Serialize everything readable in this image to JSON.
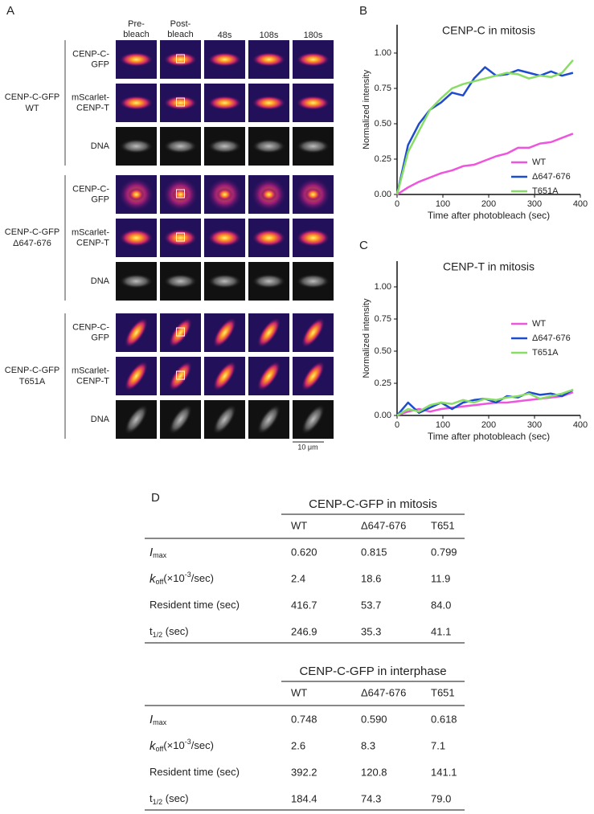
{
  "panel_labels": [
    "A",
    "B",
    "C",
    "D"
  ],
  "panel_a": {
    "columns": [
      [
        "Pre-",
        "bleach"
      ],
      [
        "Post-",
        "bleach"
      ],
      [
        "48s"
      ],
      [
        "108s"
      ],
      [
        "180s"
      ]
    ],
    "groups": [
      {
        "label": [
          "CENP-C-GFP",
          "WT"
        ],
        "rows": [
          [
            "CENP-C-",
            "GFP"
          ],
          [
            "mScarlet-",
            "CENP-T"
          ],
          [
            "DNA"
          ]
        ]
      },
      {
        "label": [
          "CENP-C-GFP",
          "Δ647-676"
        ],
        "rows": [
          [
            "CENP-C-",
            "GFP"
          ],
          [
            "mScarlet-",
            "CENP-T"
          ],
          [
            "DNA"
          ]
        ]
      },
      {
        "label": [
          "CENP-C-GFP",
          "T651A"
        ],
        "rows": [
          [
            "CENP-C-",
            "GFP"
          ],
          [
            "mScarlet-",
            "CENP-T"
          ],
          [
            "DNA"
          ]
        ]
      }
    ],
    "scale_bar": "10 μm"
  },
  "chart_data": [
    {
      "type": "line",
      "title": "CENP-C in mitosis",
      "x_label": "Time after photobleach (sec)",
      "y_label": "Normalized intensity",
      "x": [
        0,
        24,
        48,
        72,
        96,
        120,
        144,
        168,
        192,
        216,
        240,
        264,
        288,
        312,
        336,
        360,
        384
      ],
      "series": [
        {
          "name": "WT",
          "color": "#ee55dd",
          "values": [
            0,
            0.05,
            0.09,
            0.12,
            0.15,
            0.17,
            0.2,
            0.21,
            0.24,
            0.27,
            0.29,
            0.33,
            0.33,
            0.36,
            0.37,
            0.4,
            0.43
          ]
        },
        {
          "name": "Δ647-676",
          "color": "#1f4ccc",
          "values": [
            0,
            0.35,
            0.5,
            0.6,
            0.65,
            0.72,
            0.7,
            0.82,
            0.9,
            0.84,
            0.85,
            0.88,
            0.86,
            0.84,
            0.87,
            0.84,
            0.86
          ]
        },
        {
          "name": "T651A",
          "color": "#88dd66",
          "values": [
            0,
            0.3,
            0.45,
            0.6,
            0.68,
            0.75,
            0.78,
            0.8,
            0.82,
            0.84,
            0.86,
            0.85,
            0.82,
            0.84,
            0.83,
            0.86,
            0.95
          ]
        }
      ],
      "xlim": [
        0,
        400
      ],
      "ylim": [
        0,
        1.2
      ],
      "xticks": [
        0,
        100,
        200,
        300,
        400
      ],
      "yticks": [
        {
          "value": 0,
          "label": "0.00"
        },
        0.25,
        {
          "value": 0.5,
          "label": "0.50"
        },
        0.75,
        {
          "value": 1,
          "label": "1.00"
        }
      ],
      "legend": "lower right"
    },
    {
      "type": "line",
      "title": "CENP-T in mitosis",
      "x_label": "Time after photobleach (sec)",
      "y_label": "Normalized intensity",
      "x": [
        0,
        24,
        48,
        72,
        96,
        120,
        144,
        168,
        192,
        216,
        240,
        264,
        288,
        312,
        336,
        360,
        384
      ],
      "series": [
        {
          "name": "WT",
          "color": "#ee55dd",
          "values": [
            0,
            0.03,
            0.05,
            0.03,
            0.05,
            0.06,
            0.07,
            0.08,
            0.09,
            0.1,
            0.1,
            0.11,
            0.12,
            0.13,
            0.14,
            0.15,
            0.18
          ]
        },
        {
          "name": "Δ647-676",
          "color": "#1f4ccc",
          "values": [
            0,
            0.1,
            0.02,
            0.06,
            0.1,
            0.05,
            0.1,
            0.12,
            0.13,
            0.1,
            0.15,
            0.14,
            0.18,
            0.16,
            0.17,
            0.15,
            0.2
          ]
        },
        {
          "name": "T651A",
          "color": "#88dd66",
          "values": [
            0,
            0.05,
            0.03,
            0.08,
            0.1,
            0.09,
            0.12,
            0.1,
            0.13,
            0.12,
            0.14,
            0.15,
            0.17,
            0.13,
            0.15,
            0.17,
            0.2
          ]
        }
      ],
      "xlim": [
        0,
        400
      ],
      "ylim": [
        0,
        1.2
      ],
      "xticks": [
        0,
        100,
        200,
        300,
        400
      ],
      "yticks": [
        {
          "value": 0,
          "label": "0.00"
        },
        0.25,
        {
          "value": 0.5,
          "label": "0.50"
        },
        0.75,
        {
          "value": 1,
          "label": "1.00"
        }
      ],
      "legend": "center right"
    }
  ],
  "tables": [
    {
      "title": "CENP-C-GFP in mitosis",
      "columns": [
        "WT",
        "Δ647-676",
        "T651"
      ],
      "rows": [
        {
          "label": [
            "I",
            "max"
          ],
          "values": [
            "0.620",
            "0.815",
            "0.799"
          ]
        },
        {
          "label": [
            "k",
            "off",
            "(×10",
            "-3",
            "/sec)"
          ],
          "values": [
            "2.4",
            "18.6",
            "11.9"
          ]
        },
        {
          "label": [
            "Resident time (sec)"
          ],
          "values": [
            "416.7",
            "53.7",
            "84.0"
          ]
        },
        {
          "label": [
            "t",
            "1/2",
            " (sec)"
          ],
          "values": [
            "246.9",
            "35.3",
            "41.1"
          ]
        }
      ]
    },
    {
      "title": "CENP-C-GFP in interphase",
      "columns": [
        "WT",
        "Δ647-676",
        "T651"
      ],
      "rows": [
        {
          "label": [
            "I",
            "max"
          ],
          "values": [
            "0.748",
            "0.590",
            "0.618"
          ]
        },
        {
          "label": [
            "k",
            "off",
            "(×10",
            "-3",
            "/sec)"
          ],
          "values": [
            "2.6",
            "8.3",
            "7.1"
          ]
        },
        {
          "label": [
            "Resident time (sec)"
          ],
          "values": [
            "392.2",
            "120.8",
            "141.1"
          ]
        },
        {
          "label": [
            "t",
            "1/2",
            " (sec)"
          ],
          "values": [
            "184.4",
            "74.3",
            "79.0"
          ]
        }
      ]
    }
  ]
}
